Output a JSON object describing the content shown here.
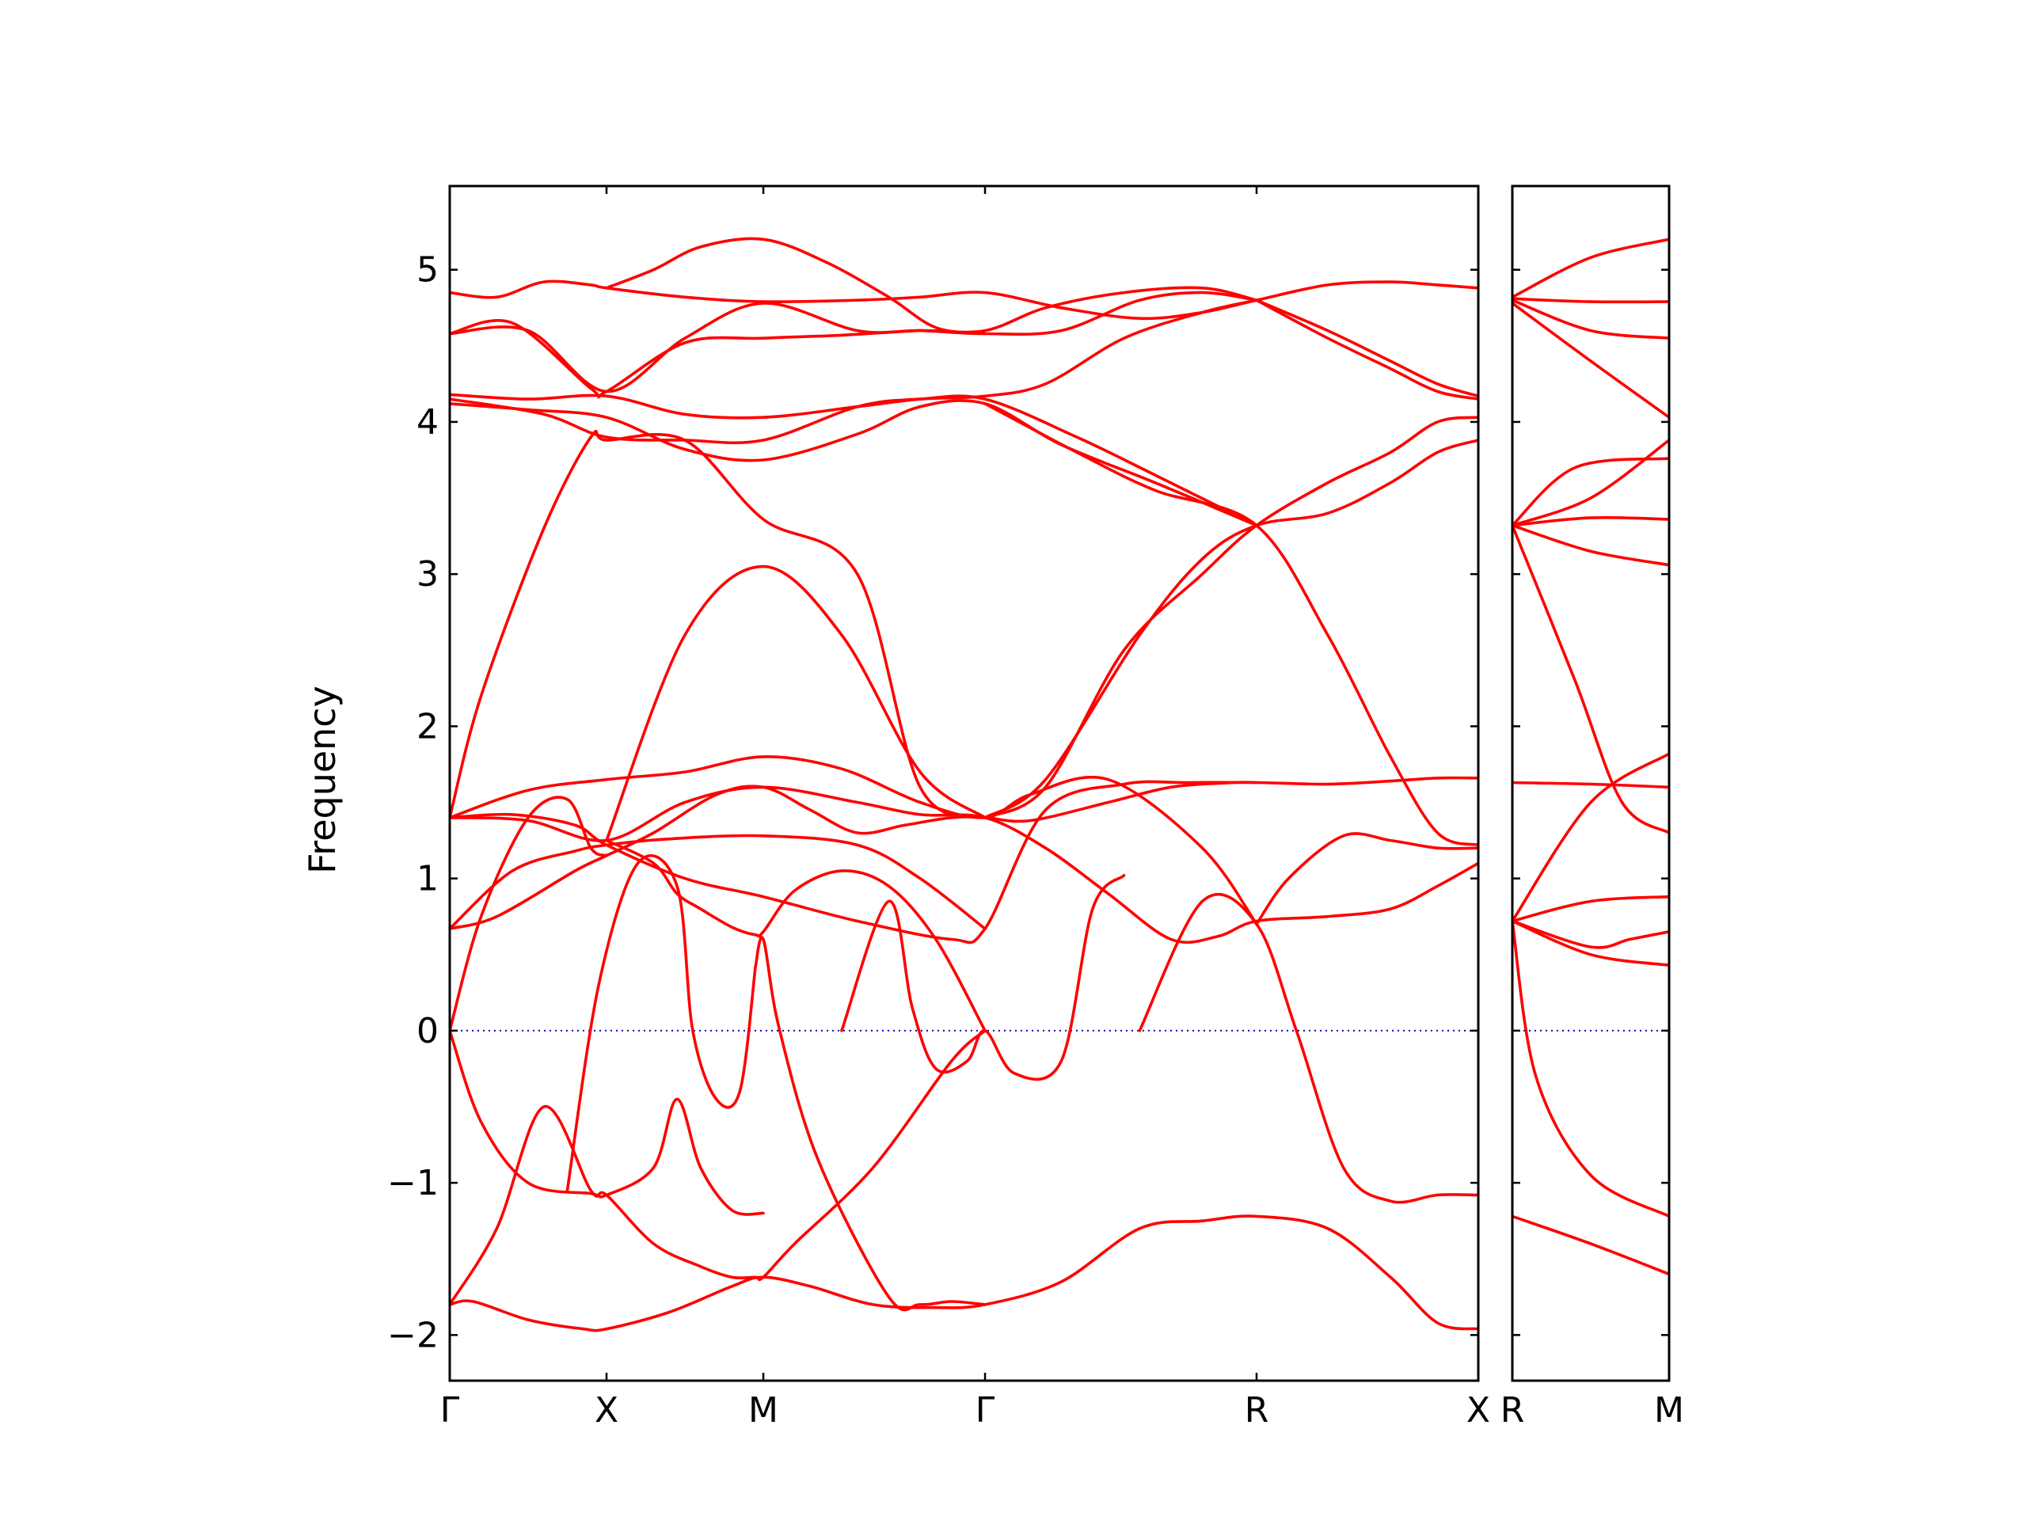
{
  "chart_data": {
    "type": "line",
    "ylabel": "Frequency",
    "ylim": [
      -2.3,
      5.55
    ],
    "y_ticks": [
      "−2",
      "−1",
      "0",
      "1",
      "2",
      "3",
      "4",
      "5"
    ],
    "y_tick_values": [
      -2,
      -1,
      0,
      1,
      2,
      3,
      4,
      5
    ],
    "band_color": "#ff0000",
    "zero_line_color": "#0000cc",
    "panels": [
      {
        "segments": [
          {
            "from": "Γ",
            "to": "X",
            "length": 1.0
          },
          {
            "from": "X",
            "to": "M",
            "length": 1.0
          },
          {
            "from": "M",
            "to": "Γ",
            "length": 1.414
          },
          {
            "from": "Γ",
            "to": "R",
            "length": 1.732
          },
          {
            "from": "R",
            "to": "X",
            "length": 1.414
          }
        ],
        "tick_labels": [
          "Γ",
          "X",
          "M",
          "Γ",
          "R",
          "X"
        ],
        "bands": [
          {
            "x": [
              0,
              0.15,
              0.5,
              0.85,
              1.0,
              1.4,
              1.8,
              2.0,
              2.3,
              2.7,
              3.1,
              3.414,
              3.9,
              4.4,
              4.8,
              5.146,
              5.6,
              6.0,
              6.3,
              6.56
            ],
            "y": [
              -1.8,
              -1.78,
              -1.9,
              -1.96,
              -1.96,
              -1.85,
              -1.68,
              -1.62,
              -1.68,
              -1.8,
              -1.82,
              -1.8,
              -1.65,
              -1.3,
              -1.25,
              -1.22,
              -1.3,
              -1.62,
              -1.92,
              -1.96
            ]
          },
          {
            "x": [
              0,
              0.3,
              0.6,
              0.9,
              1.0,
              1.3,
              1.6,
              1.8,
              1.95,
              2.0,
              2.2,
              2.7,
              3.2,
              3.414
            ],
            "y": [
              -1.8,
              -1.3,
              -0.5,
              -1.05,
              -1.08,
              -1.4,
              -1.55,
              -1.62,
              -1.62,
              -1.62,
              -1.4,
              -0.9,
              -0.2,
              0
            ]
          },
          {
            "x": [
              0,
              0.2,
              0.5,
              0.9,
              1.0,
              1.3,
              1.45,
              1.6,
              1.8,
              2.0
            ],
            "y": [
              0,
              -0.6,
              -1.0,
              -1.07,
              -1.08,
              -0.9,
              -0.45,
              -0.9,
              -1.18,
              -1.2
            ]
          },
          {
            "x": [
              1.0,
              1.3,
              1.45,
              1.6,
              1.8,
              1.95,
              2.0,
              2.2,
              2.5,
              2.8,
              3.1,
              3.414
            ],
            "y": [
              1.25,
              1.1,
              0.9,
              0.8,
              0.68,
              0.63,
              0.65,
              0.92,
              1.05,
              0.95,
              0.6,
              0.0
            ]
          },
          {
            "x": [
              0,
              0.2,
              0.5,
              0.75,
              0.9,
              1.0
            ],
            "y": [
              0,
              0.75,
              1.4,
              1.52,
              1.2,
              1.15
            ]
          },
          {
            "x": [
              0.75,
              0.95,
              1.2,
              1.45,
              1.55,
              1.7,
              1.85,
              1.95
            ],
            "y": [
              -1.05,
              0.3,
              1.1,
              0.95,
              0.0,
              -0.45,
              -0.4,
              0.42
            ]
          },
          {
            "x": [
              1.95,
              2.0,
              2.1,
              2.35,
              2.8,
              3.0,
              3.2,
              3.414
            ],
            "y": [
              0.42,
              0.6,
              0.02,
              -0.85,
              -1.75,
              -1.8,
              -1.78,
              -1.8
            ]
          },
          {
            "x": [
              2.5,
              2.8,
              2.95,
              3.1,
              3.3,
              3.414,
              3.6,
              3.9,
              4.1,
              4.3
            ],
            "y": [
              0.0,
              0.85,
              0.15,
              -0.25,
              -0.2,
              0.0,
              -0.28,
              -0.2,
              0.8,
              1.02
            ]
          },
          {
            "x": [
              0,
              0.3,
              0.8,
              1.0,
              1.3,
              1.7,
              2.0,
              2.3,
              2.6,
              2.9,
              3.2,
              3.414,
              3.7,
              4.2,
              4.6,
              5.0,
              5.146
            ],
            "y": [
              0.67,
              0.75,
              1.05,
              1.15,
              1.3,
              1.55,
              1.6,
              1.45,
              1.3,
              1.35,
              1.4,
              1.4,
              1.38,
              1.5,
              1.6,
              1.63,
              1.63
            ]
          },
          {
            "x": [
              0,
              0.4,
              0.8,
              1.0,
              1.4,
              2.0,
              2.6,
              3.0,
              3.414
            ],
            "y": [
              0.67,
              1.05,
              1.18,
              1.22,
              1.26,
              1.28,
              1.22,
              1.0,
              0.67
            ]
          },
          {
            "x": [
              0,
              0.4,
              0.8,
              1.0,
              1.5,
              2.0,
              2.6,
              3.2,
              3.414,
              3.8,
              4.3,
              4.7,
              5.146,
              5.6,
              6.0,
              6.3,
              6.56
            ],
            "y": [
              1.4,
              1.42,
              1.35,
              1.22,
              1.0,
              0.88,
              0.72,
              0.6,
              0.67,
              1.45,
              1.62,
              1.63,
              1.63,
              1.62,
              1.64,
              1.66,
              1.66
            ]
          },
          {
            "x": [
              0,
              0.5,
              1.0,
              1.5,
              2.0,
              2.6,
              3.0,
              3.414,
              3.8,
              4.2,
              4.6,
              4.9,
              5.146,
              5.6,
              6.0,
              6.3,
              6.56
            ],
            "y": [
              1.4,
              1.38,
              1.25,
              1.5,
              1.6,
              1.5,
              1.42,
              1.4,
              1.2,
              0.9,
              0.6,
              0.62,
              0.72,
              0.75,
              0.8,
              0.95,
              1.1
            ]
          },
          {
            "x": [
              0,
              0.5,
              1.0,
              1.5,
              2.0,
              2.5,
              3.0,
              3.414,
              3.7,
              4.2,
              4.8,
              5.146
            ],
            "y": [
              1.4,
              1.58,
              1.65,
              1.7,
              1.8,
              1.72,
              1.5,
              1.4,
              1.55,
              1.65,
              1.2,
              0.7
            ]
          },
          {
            "x": [
              0,
              0.2,
              0.6,
              0.9,
              1.0,
              1.5,
              2.0,
              2.6,
              3.0,
              3.414
            ],
            "y": [
              1.4,
              2.2,
              3.3,
              3.9,
              3.88,
              3.88,
              3.36,
              3.0,
              1.6,
              1.4
            ]
          },
          {
            "x": [
              1.0,
              1.5,
              2.0,
              2.5,
              3.0,
              3.414
            ],
            "y": [
              1.25,
              2.6,
              3.05,
              2.6,
              1.7,
              1.4
            ]
          },
          {
            "x": [
              3.414,
              3.8,
              4.3,
              4.8,
              5.146,
              5.6,
              6.0,
              6.3,
              6.56
            ],
            "y": [
              1.4,
              1.6,
              2.5,
              3.0,
              3.32,
              3.6,
              3.8,
              4.0,
              4.03
            ]
          },
          {
            "x": [
              3.414,
              3.8,
              4.4,
              4.8,
              5.146,
              5.6,
              6.0,
              6.3,
              6.56
            ],
            "y": [
              1.4,
              1.65,
              2.6,
              3.1,
              3.32,
              3.4,
              3.6,
              3.8,
              3.88
            ]
          },
          {
            "x": [
              3.414,
              4.0,
              4.5,
              5.146,
              5.6,
              6.0,
              6.3,
              6.56
            ],
            "y": [
              4.12,
              3.8,
              3.55,
              3.32,
              2.6,
              1.8,
              1.3,
              1.22
            ]
          },
          {
            "x": [
              0,
              0.5,
              1.0,
              1.5,
              2.0,
              2.6,
              3.0,
              3.414,
              3.9,
              4.5,
              5.146
            ],
            "y": [
              4.12,
              4.08,
              4.03,
              3.82,
              3.75,
              3.92,
              4.1,
              4.12,
              3.85,
              3.6,
              3.32
            ]
          },
          {
            "x": [
              0,
              0.6,
              1.0,
              1.5,
              2.0,
              2.6,
              3.0,
              3.414,
              4.0,
              4.5,
              5.146
            ],
            "y": [
              4.15,
              4.05,
              3.9,
              3.88,
              3.88,
              4.1,
              4.15,
              4.15,
              3.9,
              3.65,
              3.32
            ]
          },
          {
            "x": [
              0,
              0.5,
              1.0,
              1.5,
              2.0,
              2.6,
              3.0,
              3.414,
              3.8,
              4.3,
              4.8,
              5.146
            ],
            "y": [
              4.18,
              4.15,
              4.17,
              4.05,
              4.03,
              4.1,
              4.15,
              4.17,
              4.25,
              4.55,
              4.72,
              4.8
            ]
          },
          {
            "x": [
              0,
              0.4,
              0.9,
              1.0,
              1.5,
              2.0,
              2.5,
              3.0,
              3.414,
              3.8,
              4.3,
              4.8,
              5.146
            ],
            "y": [
              4.58,
              4.65,
              4.22,
              4.2,
              4.52,
              4.55,
              4.57,
              4.6,
              4.6,
              4.75,
              4.85,
              4.88,
              4.8
            ]
          },
          {
            "x": [
              0,
              0.5,
              1.0,
              1.5,
              2.0,
              2.6,
              3.0,
              3.414,
              3.9,
              4.4,
              4.8,
              5.146
            ],
            "y": [
              4.58,
              4.6,
              4.2,
              4.55,
              4.78,
              4.6,
              4.6,
              4.58,
              4.6,
              4.8,
              4.85,
              4.8
            ]
          },
          {
            "x": [
              0,
              0.3,
              0.6,
              0.9,
              1.0,
              1.5,
              2.0,
              2.6,
              3.0,
              3.414,
              3.9,
              4.4,
              4.8,
              5.146,
              5.6,
              6.0,
              6.3,
              6.56
            ],
            "y": [
              4.85,
              4.82,
              4.92,
              4.9,
              4.88,
              4.82,
              4.79,
              4.8,
              4.82,
              4.85,
              4.75,
              4.68,
              4.72,
              4.8,
              4.9,
              4.92,
              4.9,
              4.88
            ]
          },
          {
            "x": [
              1.0,
              1.3,
              1.6,
              2.0,
              2.4,
              2.8,
              3.1,
              3.414
            ],
            "y": [
              4.88,
              5.0,
              5.15,
              5.2,
              5.05,
              4.82,
              4.62,
              4.58
            ]
          },
          {
            "x": [
              5.146,
              5.6,
              6.0,
              6.3,
              6.56
            ],
            "y": [
              4.8,
              4.6,
              4.4,
              4.25,
              4.17
            ]
          },
          {
            "x": [
              5.146,
              5.6,
              6.0,
              6.3,
              6.56
            ],
            "y": [
              4.8,
              4.55,
              4.35,
              4.2,
              4.15
            ]
          },
          {
            "x": [
              4.4,
              4.8,
              5.146,
              5.4,
              5.7,
              6.0,
              6.3,
              6.56
            ],
            "y": [
              0.0,
              0.85,
              0.7,
              0.0,
              -0.9,
              -1.12,
              -1.08,
              -1.08
            ]
          },
          {
            "x": [
              5.146,
              5.35,
              5.7,
              6.0,
              6.3,
              6.56
            ],
            "y": [
              0.7,
              1.0,
              1.28,
              1.25,
              1.2,
              1.2
            ]
          }
        ]
      },
      {
        "segments": [
          {
            "from": "R",
            "to": "M",
            "length": 1.0
          }
        ],
        "tick_labels": [
          "R",
          "M"
        ],
        "bands": [
          {
            "x": [
              0,
              0.5,
              1.0
            ],
            "y": [
              4.82,
              5.08,
              5.2
            ]
          },
          {
            "x": [
              0,
              0.5,
              1.0
            ],
            "y": [
              4.81,
              4.79,
              4.79
            ]
          },
          {
            "x": [
              0,
              0.5,
              1.0
            ],
            "y": [
              4.8,
              4.6,
              4.55
            ]
          },
          {
            "x": [
              0,
              0.5,
              1.0
            ],
            "y": [
              4.78,
              4.4,
              4.03
            ]
          },
          {
            "x": [
              0,
              0.4,
              1.0
            ],
            "y": [
              3.32,
              3.7,
              3.76
            ]
          },
          {
            "x": [
              0,
              0.5,
              1.0
            ],
            "y": [
              3.32,
              3.5,
              3.88
            ]
          },
          {
            "x": [
              0,
              0.5,
              1.0
            ],
            "y": [
              3.32,
              3.37,
              3.36
            ]
          },
          {
            "x": [
              0,
              0.5,
              1.0
            ],
            "y": [
              3.32,
              3.15,
              3.06
            ]
          },
          {
            "x": [
              0,
              0.4,
              0.7,
              1.0
            ],
            "y": [
              3.32,
              2.3,
              1.5,
              1.3
            ]
          },
          {
            "x": [
              0,
              0.5,
              1.0
            ],
            "y": [
              1.63,
              1.62,
              1.6
            ]
          },
          {
            "x": [
              0,
              0.5,
              1.0
            ],
            "y": [
              0.72,
              1.5,
              1.82
            ]
          },
          {
            "x": [
              0,
              0.5,
              1.0
            ],
            "y": [
              0.72,
              0.85,
              0.88
            ]
          },
          {
            "x": [
              0,
              0.5,
              0.75,
              1.0
            ],
            "y": [
              0.72,
              0.55,
              0.6,
              0.65
            ]
          },
          {
            "x": [
              0,
              0.5,
              1.0
            ],
            "y": [
              0.72,
              0.5,
              0.43
            ]
          },
          {
            "x": [
              0,
              0.15,
              0.5,
              1.0
            ],
            "y": [
              0.72,
              -0.3,
              -0.95,
              -1.22
            ]
          },
          {
            "x": [
              0,
              0.5,
              1.0
            ],
            "y": [
              -1.22,
              -1.4,
              -1.6
            ]
          }
        ]
      }
    ]
  }
}
